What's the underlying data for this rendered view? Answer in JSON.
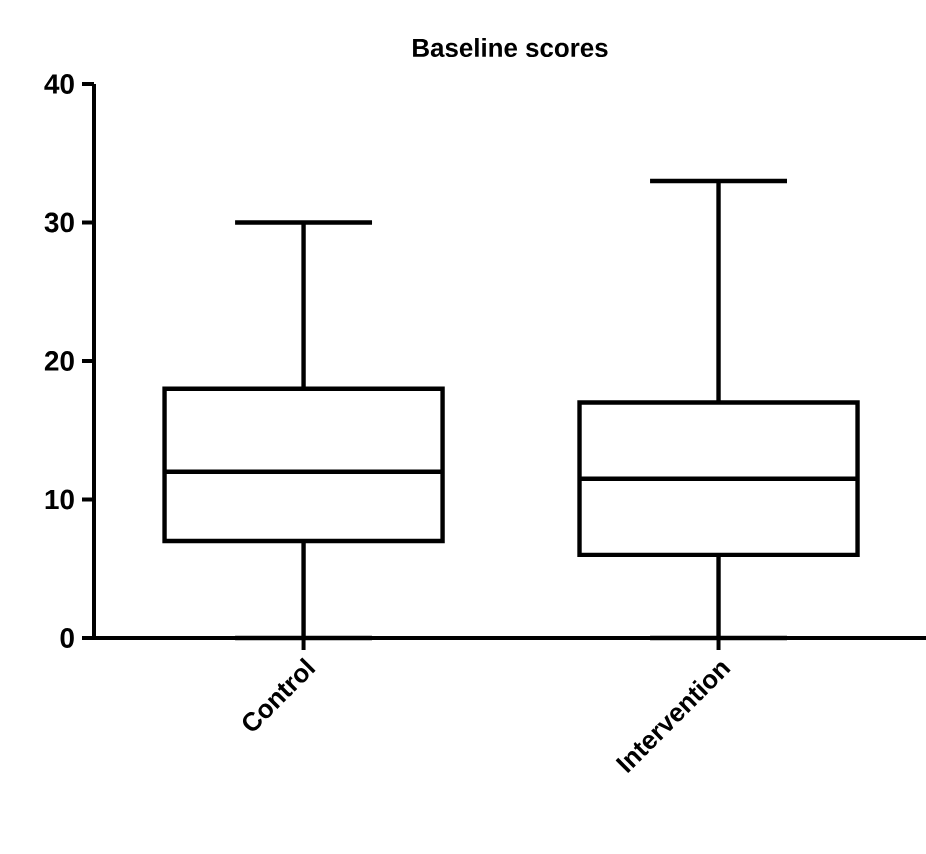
{
  "chart_data": {
    "type": "box",
    "title": "Baseline scores",
    "categories": [
      "Control",
      "Intervention"
    ],
    "boxes": [
      {
        "low": 0,
        "q1": 7,
        "median": 12,
        "q3": 18,
        "high": 30
      },
      {
        "low": 0,
        "q1": 6,
        "median": 11.5,
        "q3": 17,
        "high": 33
      }
    ],
    "ylim": [
      0,
      40
    ],
    "yticks": [
      0,
      10,
      20,
      30,
      40
    ]
  }
}
